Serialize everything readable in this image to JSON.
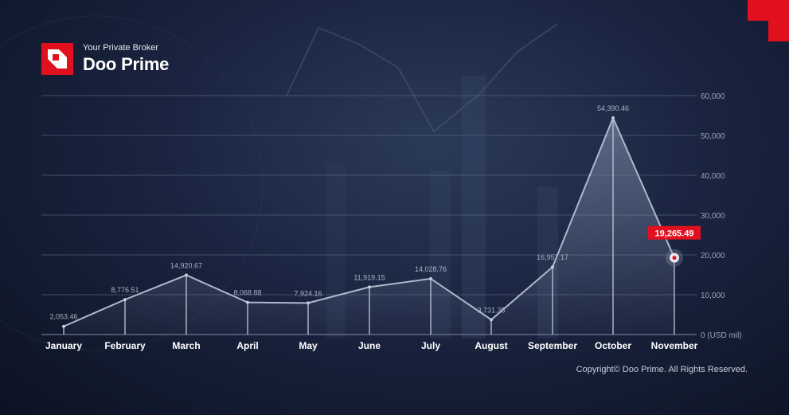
{
  "brand": {
    "tagline": "Your Private Broker",
    "name": "Doo Prime",
    "accent_color": "#e2101f"
  },
  "copyright": "Copyright© Doo Prime. All Rights Reserved.",
  "chart_data": {
    "type": "area",
    "categories": [
      "January",
      "February",
      "March",
      "April",
      "May",
      "June",
      "July",
      "August",
      "September",
      "October",
      "November"
    ],
    "values": [
      2053.46,
      8776.51,
      14920.67,
      8068.88,
      7924.16,
      11919.15,
      14028.76,
      3731.35,
      16957.17,
      54390.46,
      19265.49
    ],
    "value_labels": [
      "2,053.46",
      "8,776.51",
      "14,920.67",
      "8,068.88",
      "7,924.16",
      "11,919.15",
      "14,028.76",
      "3,731.35",
      "16,957.17",
      "54,390.46",
      "19,265.49"
    ],
    "highlight_index": 10,
    "yaxis_ticks": [
      "0 (USD mil)",
      "10,000",
      "20,000",
      "30,000",
      "40,000",
      "50,000",
      "60,000"
    ],
    "ylim": [
      0,
      60000
    ],
    "grid": true,
    "line_color": "#aeb9cc",
    "highlight_color": "#e2101f"
  }
}
